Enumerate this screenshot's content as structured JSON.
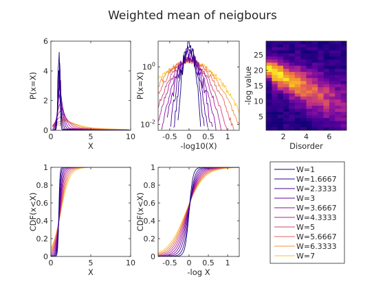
{
  "figure": {
    "title": "Weighted mean of neigbours"
  },
  "colors": {
    "axis": "#262626",
    "series": [
      "#14007a",
      "#2e0089",
      "#4a0097",
      "#6a02a0",
      "#8c0aa0",
      "#ad2196",
      "#cc4177",
      "#e3635a",
      "#f4903c",
      "#fbc42a",
      "#f5f11a"
    ]
  },
  "chart_data": [
    {
      "type": "line",
      "xlabel": "X",
      "ylabel": "P(x=X)",
      "xlim": [
        0,
        10
      ],
      "ylim": [
        0,
        6
      ],
      "xticks": [
        0,
        5,
        10
      ],
      "yticks": [
        0,
        2,
        4,
        6
      ],
      "peak_x": [
        1.0,
        1.05,
        1.1,
        1.15,
        1.2,
        1.25,
        1.3,
        1.35,
        1.4,
        1.45
      ],
      "peak_y": [
        5.5,
        4.2,
        3.2,
        2.4,
        1.8,
        1.3,
        0.9,
        0.6,
        0.45,
        0.35
      ],
      "spread": [
        0.12,
        0.16,
        0.22,
        0.3,
        0.4,
        0.55,
        0.75,
        1.0,
        1.3,
        1.6
      ]
    },
    {
      "type": "line",
      "xlabel": "-log10(X)",
      "ylabel": "P(x=X)",
      "xlim": [
        -0.8,
        1.3
      ],
      "ylim_log10": [
        -2.2,
        0.9
      ],
      "yscale": "log",
      "xticks": [
        "-0.5",
        "0",
        "0.5",
        "1"
      ],
      "yticks": [
        {
          "base": "10",
          "exp": "-2",
          "value": -2
        },
        {
          "base": "10",
          "exp": "0",
          "value": 0
        }
      ],
      "peak_log_y": [
        0.8,
        0.6,
        0.45,
        0.35,
        0.3,
        0.27,
        0.24,
        0.22,
        0.2,
        0.18
      ],
      "sigma": [
        0.12,
        0.16,
        0.2,
        0.25,
        0.3,
        0.36,
        0.42,
        0.5,
        0.58,
        0.66
      ]
    },
    {
      "type": "heatmap",
      "xlabel": "Disorder",
      "ylabel": "-log value",
      "xlim": [
        0.5,
        7.5
      ],
      "ylim": [
        0.5,
        29.5
      ],
      "xticks": [
        2,
        4,
        6
      ],
      "yticks": [
        5,
        10,
        15,
        20,
        25
      ],
      "n_cols": 14,
      "n_rows": 29
    },
    {
      "type": "line",
      "xlabel": "X",
      "ylabel": "CDF(x<X)",
      "xlim": [
        0,
        10
      ],
      "ylim": [
        0,
        1
      ],
      "xticks": [
        0,
        5,
        10
      ],
      "yticks": [
        0,
        0.2,
        0.4,
        0.6,
        0.8,
        1
      ],
      "median_x": [
        1.0,
        1.02,
        1.05,
        1.08,
        1.1,
        1.12,
        1.15,
        1.18,
        1.2,
        1.25
      ],
      "scale": [
        0.12,
        0.18,
        0.25,
        0.33,
        0.42,
        0.52,
        0.63,
        0.75,
        0.88,
        1.0
      ]
    },
    {
      "type": "line",
      "xlabel": "-log X",
      "ylabel": "CDF(x<X)",
      "xlim": [
        -0.8,
        1.3
      ],
      "ylim": [
        0,
        1
      ],
      "xticks": [
        "-0.5",
        "0",
        "0.5",
        "1"
      ],
      "yticks": [
        0,
        0.2,
        0.4,
        0.6,
        0.8,
        1
      ],
      "center": [
        0,
        0.0,
        -0.01,
        -0.02,
        -0.03,
        -0.04,
        -0.05,
        -0.06,
        -0.07,
        -0.08
      ],
      "scale": [
        0.05,
        0.07,
        0.09,
        0.11,
        0.13,
        0.15,
        0.17,
        0.19,
        0.21,
        0.23
      ]
    }
  ],
  "legend": {
    "placement": "bottom-right panel",
    "entries": [
      "W=1",
      "W=1.6667",
      "W=2.3333",
      "W=3",
      "W=3.6667",
      "W=4.3333",
      "W=5",
      "W=5.6667",
      "W=6.3333",
      "W=7"
    ]
  }
}
